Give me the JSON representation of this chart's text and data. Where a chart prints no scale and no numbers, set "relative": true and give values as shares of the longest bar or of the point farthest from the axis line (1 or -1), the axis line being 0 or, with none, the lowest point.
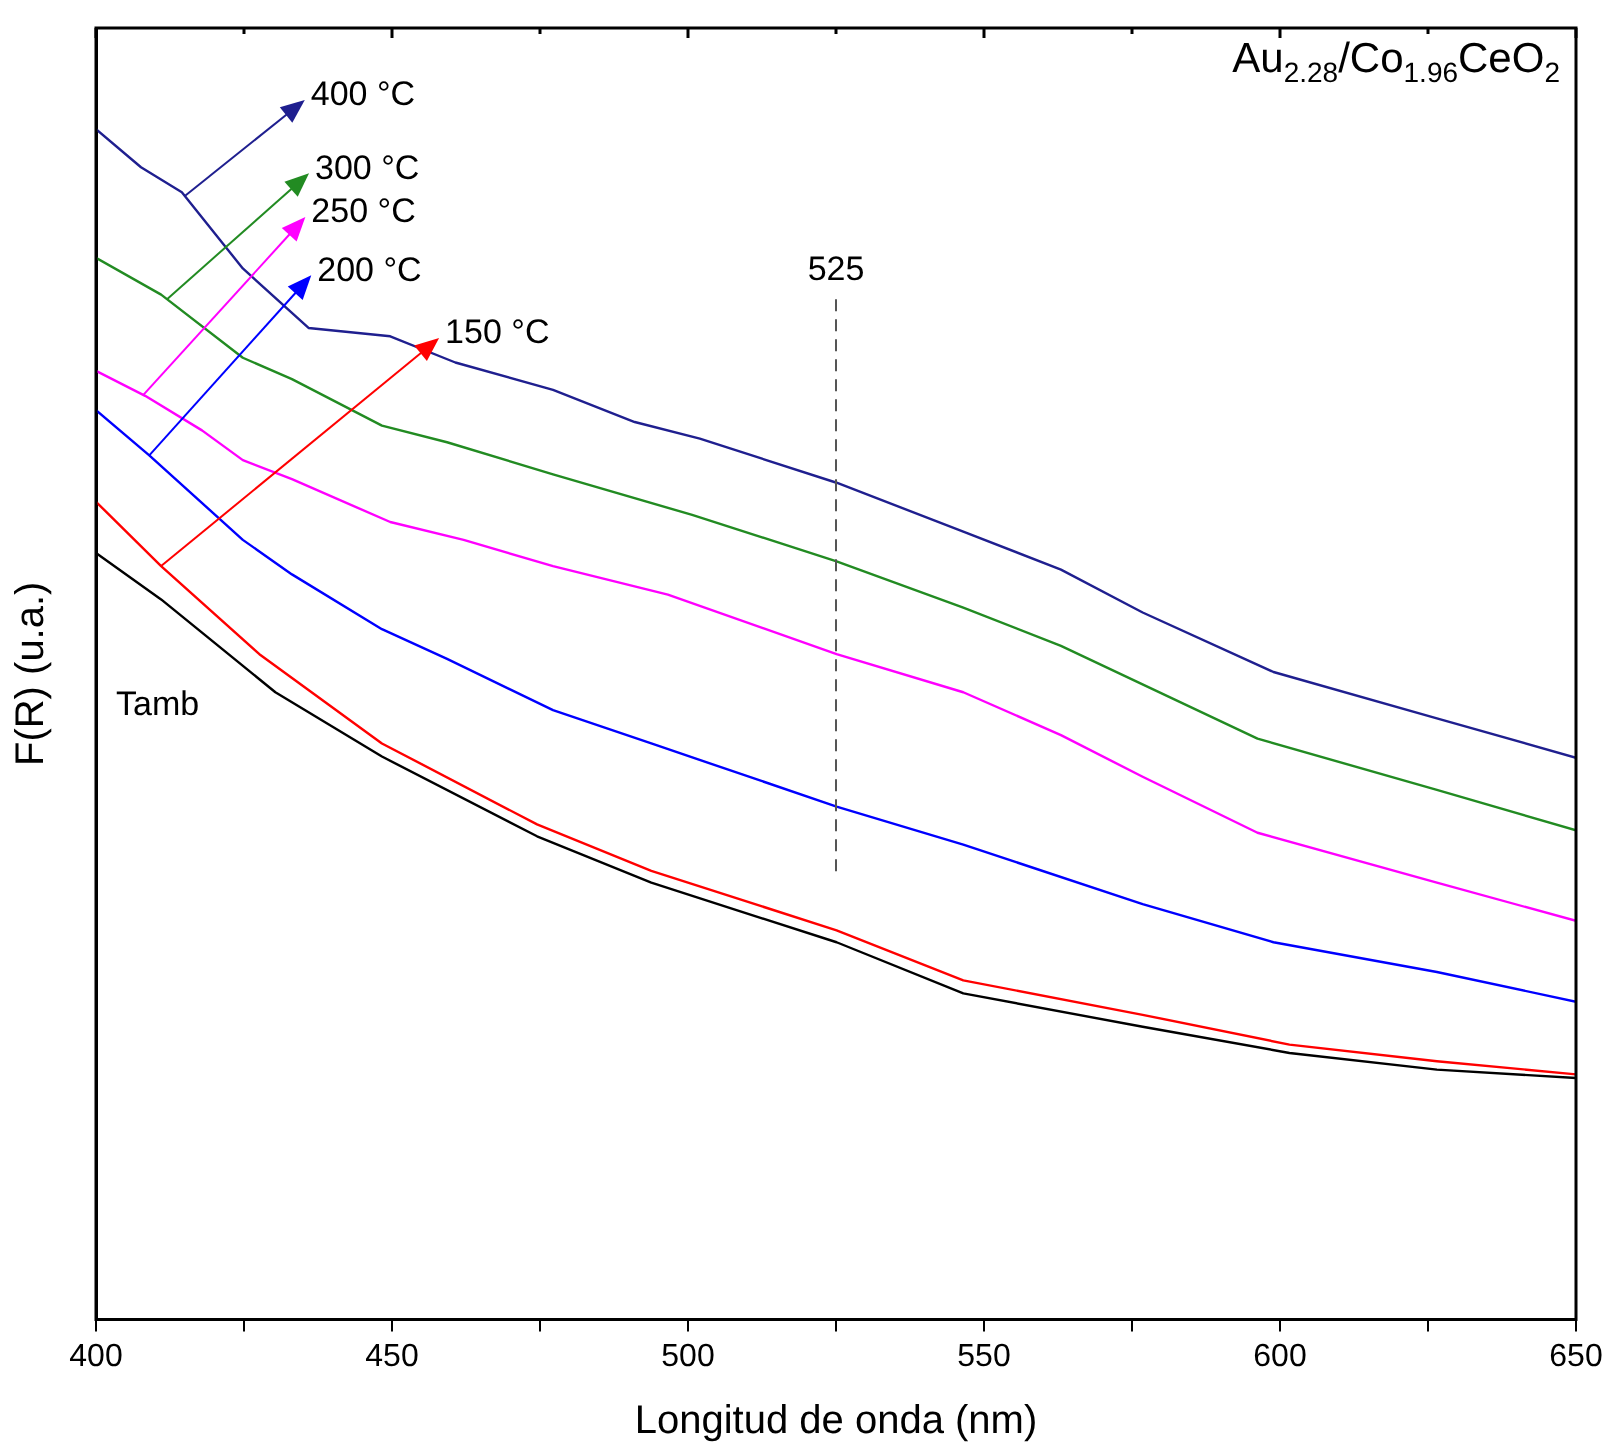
{
  "chart_data": {
    "type": "line",
    "title": "Au$_{2.28}$/Co$_{1.96}$CeO$_{2}$",
    "xlabel": "Longitud de onda (nm)",
    "ylabel": "F(R) (u.a.)",
    "relative": true,
    "grid": false,
    "legend": "top left",
    "marker": "none",
    "line_style": "solid",
    "xlim": [
      400,
      650
    ],
    "xticks": [
      400,
      {
        "value": 425,
        "label": null
      },
      450,
      {
        "value": 475,
        "label": null
      },
      500,
      {
        "value": 525,
        "label": null
      },
      550,
      {
        "value": 575,
        "label": null
      },
      600,
      {
        "value": 625,
        "label": null
      },
      650
    ],
    "ref_lines": [
      {
        "axis": "x",
        "value": 525,
        "label": "525",
        "color": "#555555",
        "line_style": "dashed"
      }
    ],
    "series": [
      {
        "name": "400 °C",
        "color": "#1f1f8f",
        "x": [
          400,
          407.6,
          414.5,
          424.8,
          435.9,
          449.7,
          460.7,
          477.2,
          491,
          502,
          525.1,
          546.5,
          563,
          576.8,
          598.9,
          626.5,
          650
        ],
        "values": [
          1.0,
          0.968,
          0.947,
          0.883,
          0.833,
          0.826,
          0.804,
          0.781,
          0.754,
          0.74,
          0.703,
          0.662,
          0.63,
          0.594,
          0.544,
          0.505,
          0.472
        ]
      },
      {
        "name": "300 °C",
        "color": "#228b22",
        "x": [
          400,
          411,
          424.8,
          433.1,
          448.3,
          459.3,
          477.2,
          500.7,
          525.1,
          546.5,
          563,
          596.2,
          626.5,
          650
        ],
        "values": [
          0.892,
          0.861,
          0.808,
          0.79,
          0.751,
          0.737,
          0.71,
          0.676,
          0.637,
          0.598,
          0.566,
          0.488,
          0.445,
          0.411
        ]
      },
      {
        "name": "250 °C",
        "color": "#ff00ff",
        "x": [
          400,
          408.3,
          417.9,
          424.8,
          433.1,
          449.7,
          462.1,
          477.2,
          496.6,
          525.1,
          546.5,
          563,
          576.8,
          596.2,
          626.5,
          650
        ],
        "values": [
          0.797,
          0.776,
          0.747,
          0.722,
          0.706,
          0.67,
          0.655,
          0.633,
          0.609,
          0.559,
          0.527,
          0.491,
          0.456,
          0.409,
          0.367,
          0.335
        ]
      },
      {
        "name": "200 °C",
        "color": "#0000ff",
        "x": [
          400,
          409,
          424.8,
          433.1,
          448.3,
          459.3,
          477.2,
          493.8,
          525.1,
          546.5,
          576.8,
          598.9,
          626.5,
          650
        ],
        "values": [
          0.764,
          0.726,
          0.655,
          0.626,
          0.58,
          0.555,
          0.512,
          0.484,
          0.431,
          0.399,
          0.349,
          0.317,
          0.292,
          0.267
        ]
      },
      {
        "name": "150 °C",
        "color": "#ff0000",
        "x": [
          400,
          411,
          427.6,
          448.3,
          474.5,
          493.8,
          525.1,
          546.5,
          576.8,
          601.6,
          626.5,
          650
        ],
        "values": [
          0.687,
          0.633,
          0.559,
          0.484,
          0.416,
          0.377,
          0.327,
          0.285,
          0.256,
          0.231,
          0.217,
          0.206
        ]
      },
      {
        "name": "Tamb",
        "color": "#000000",
        "x": [
          400,
          411,
          430.3,
          448.3,
          474.5,
          493.8,
          525.1,
          546.5,
          576.8,
          601.6,
          626.5,
          650
        ],
        "values": [
          0.644,
          0.605,
          0.527,
          0.473,
          0.406,
          0.367,
          0.317,
          0.274,
          0.246,
          0.224,
          0.21,
          0.203
        ]
      }
    ]
  }
}
